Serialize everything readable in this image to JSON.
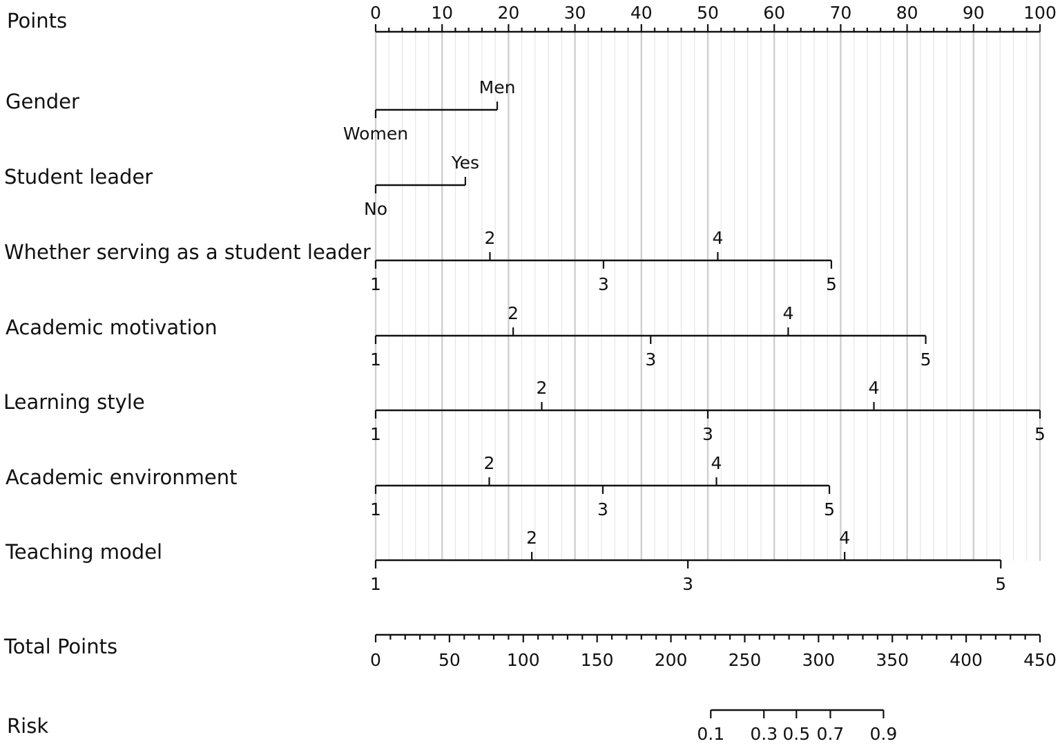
{
  "chart_data": {
    "type": "nomogram",
    "points_axis": {
      "label": "Points",
      "min": 0,
      "max": 100,
      "ticks": [
        0,
        10,
        20,
        30,
        40,
        50,
        60,
        70,
        80,
        90,
        100
      ]
    },
    "variables": [
      {
        "label": "Gender",
        "levels": [
          {
            "label": "Women",
            "points": 0,
            "side": "below"
          },
          {
            "label": "Men",
            "points": 18.3,
            "side": "above"
          }
        ]
      },
      {
        "label": "Student leader",
        "levels": [
          {
            "label": "No",
            "points": 0,
            "side": "below"
          },
          {
            "label": "Yes",
            "points": 13.5,
            "side": "above"
          }
        ]
      },
      {
        "label": "Whether serving as a student leader",
        "levels": [
          {
            "label": "1",
            "points": 0,
            "side": "below"
          },
          {
            "label": "2",
            "points": 17.2,
            "side": "above"
          },
          {
            "label": "3",
            "points": 34.3,
            "side": "below"
          },
          {
            "label": "4",
            "points": 51.5,
            "side": "above"
          },
          {
            "label": "5",
            "points": 68.6,
            "side": "below"
          }
        ]
      },
      {
        "label": "Academic motivation",
        "levels": [
          {
            "label": "1",
            "points": 0,
            "side": "below"
          },
          {
            "label": "2",
            "points": 20.7,
            "side": "above"
          },
          {
            "label": "3",
            "points": 41.4,
            "side": "below"
          },
          {
            "label": "4",
            "points": 62.1,
            "side": "above"
          },
          {
            "label": "5",
            "points": 82.8,
            "side": "below"
          }
        ]
      },
      {
        "label": "Learning style",
        "levels": [
          {
            "label": "1",
            "points": 0,
            "side": "below"
          },
          {
            "label": "2",
            "points": 25,
            "side": "above"
          },
          {
            "label": "3",
            "points": 50,
            "side": "below"
          },
          {
            "label": "4",
            "points": 75,
            "side": "above"
          },
          {
            "label": "5",
            "points": 100,
            "side": "below"
          }
        ]
      },
      {
        "label": "Academic environment",
        "levels": [
          {
            "label": "1",
            "points": 0,
            "side": "below"
          },
          {
            "label": "2",
            "points": 17.1,
            "side": "above"
          },
          {
            "label": "3",
            "points": 34.2,
            "side": "below"
          },
          {
            "label": "4",
            "points": 51.3,
            "side": "above"
          },
          {
            "label": "5",
            "points": 68.3,
            "side": "below"
          }
        ]
      },
      {
        "label": "Teaching model",
        "levels": [
          {
            "label": "1",
            "points": 0,
            "side": "below"
          },
          {
            "label": "2",
            "points": 23.5,
            "side": "above"
          },
          {
            "label": "3",
            "points": 47,
            "side": "below"
          },
          {
            "label": "4",
            "points": 70.6,
            "side": "above"
          },
          {
            "label": "5",
            "points": 94.1,
            "side": "below"
          }
        ]
      }
    ],
    "total_points_axis": {
      "label": "Total Points",
      "min": 0,
      "max": 450,
      "ticks": [
        0,
        50,
        100,
        150,
        200,
        250,
        300,
        350,
        400,
        450
      ]
    },
    "risk_axis": {
      "label": "Risk",
      "ticks": [
        {
          "label": "0.1",
          "total_points": 227
        },
        {
          "label": "0.3",
          "total_points": 263
        },
        {
          "label": "0.5",
          "total_points": 285
        },
        {
          "label": "0.7",
          "total_points": 308
        },
        {
          "label": "0.9",
          "total_points": 344
        }
      ]
    },
    "grid": true
  }
}
